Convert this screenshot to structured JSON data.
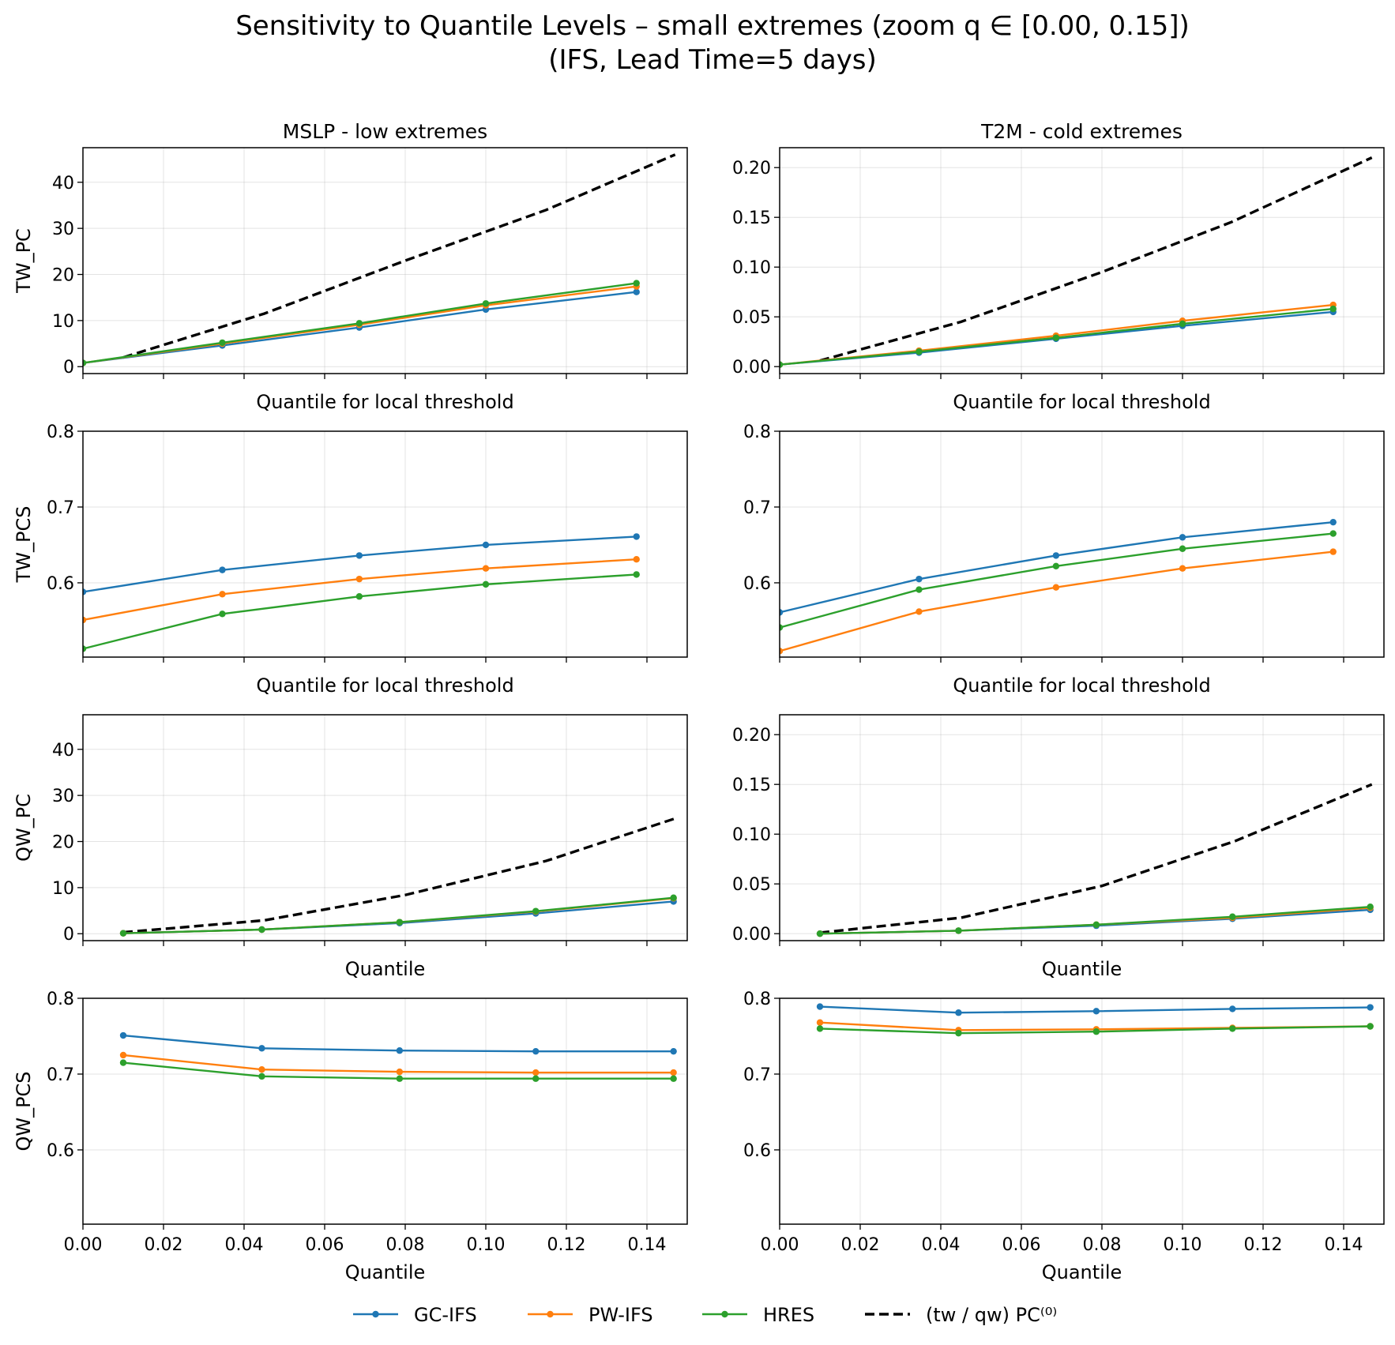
{
  "figure": {
    "title_line1": "Sensitivity to Quantile Levels – small extremes (zoom q ∈ [0.00, 0.15])",
    "title_line2": "(IFS, Lead Time=5 days)",
    "colors": {
      "GC-IFS": "#1f77b4",
      "PW-IFS": "#ff7f0e",
      "HRES": "#2ca02c",
      "reference": "#000000"
    },
    "legend": {
      "placement": "bottom-center",
      "entries": [
        "GC-IFS",
        "PW-IFS",
        "HRES",
        "(tw / qw) PC⁽⁰⁾"
      ]
    }
  },
  "chart_data": [
    {
      "type": "line",
      "row": 0,
      "col": 0,
      "title": "MSLP - low extremes",
      "xlabel": "Quantile for local threshold",
      "ylabel": "TW_PC",
      "xlim": [
        0.0,
        0.15
      ],
      "ylim": [
        -1.5,
        47.5
      ],
      "yticks": [
        0,
        10,
        20,
        30,
        40
      ],
      "ytick_labels": [
        "0",
        "10",
        "20",
        "30",
        "40"
      ],
      "show_xtick_labels": false,
      "grid": true,
      "x": [
        0.0,
        0.0346,
        0.0686,
        0.1,
        0.1374
      ],
      "series": [
        {
          "name": "GC-IFS",
          "values": [
            0.8,
            4.6,
            8.5,
            12.4,
            16.2
          ]
        },
        {
          "name": "PW-IFS",
          "values": [
            0.8,
            5.0,
            9.1,
            13.3,
            17.4
          ]
        },
        {
          "name": "HRES",
          "values": [
            0.8,
            5.2,
            9.4,
            13.7,
            18.1
          ]
        }
      ],
      "reference": {
        "name": "(tw / qw) PC⁽⁰⁾",
        "x": [
          0.01,
          0.045,
          0.08,
          0.115,
          0.147
        ],
        "values": [
          2.0,
          11.5,
          23.0,
          34.0,
          46.0
        ]
      }
    },
    {
      "type": "line",
      "row": 0,
      "col": 1,
      "title": "T2M - cold extremes",
      "xlabel": "Quantile for local threshold",
      "ylabel": "",
      "xlim": [
        0.0,
        0.15
      ],
      "ylim": [
        -0.007,
        0.22
      ],
      "yticks": [
        0.0,
        0.05,
        0.1,
        0.15,
        0.2
      ],
      "ytick_labels": [
        "0.00",
        "0.05",
        "0.10",
        "0.15",
        "0.20"
      ],
      "show_xtick_labels": false,
      "grid": true,
      "x": [
        0.0,
        0.0346,
        0.0686,
        0.1,
        0.1374
      ],
      "series": [
        {
          "name": "GC-IFS",
          "values": [
            0.002,
            0.014,
            0.028,
            0.041,
            0.055
          ]
        },
        {
          "name": "PW-IFS",
          "values": [
            0.002,
            0.016,
            0.031,
            0.046,
            0.062
          ]
        },
        {
          "name": "HRES",
          "values": [
            0.002,
            0.015,
            0.029,
            0.043,
            0.058
          ]
        }
      ],
      "reference": {
        "name": "(tw / qw) PC⁽⁰⁾",
        "x": [
          0.01,
          0.045,
          0.08,
          0.112,
          0.147
        ],
        "values": [
          0.006,
          0.045,
          0.095,
          0.145,
          0.21
        ]
      }
    },
    {
      "type": "line",
      "row": 1,
      "col": 0,
      "title": "",
      "xlabel": "Quantile for local threshold",
      "ylabel": "TW_PCS",
      "xlim": [
        0.0,
        0.15
      ],
      "ylim": [
        0.502,
        0.8
      ],
      "yticks": [
        0.6,
        0.7,
        0.8
      ],
      "ytick_labels": [
        "0.6",
        "0.7",
        "0.8"
      ],
      "show_xtick_labels": false,
      "grid": true,
      "x": [
        0.0,
        0.0346,
        0.0686,
        0.1,
        0.1374
      ],
      "series": [
        {
          "name": "GC-IFS",
          "values": [
            0.588,
            0.617,
            0.636,
            0.65,
            0.661
          ]
        },
        {
          "name": "PW-IFS",
          "values": [
            0.551,
            0.585,
            0.605,
            0.619,
            0.631
          ]
        },
        {
          "name": "HRES",
          "values": [
            0.513,
            0.559,
            0.582,
            0.598,
            0.611
          ]
        }
      ]
    },
    {
      "type": "line",
      "row": 1,
      "col": 1,
      "title": "",
      "xlabel": "Quantile for local threshold",
      "ylabel": "",
      "xlim": [
        0.0,
        0.15
      ],
      "ylim": [
        0.502,
        0.8
      ],
      "yticks": [
        0.6,
        0.7,
        0.8
      ],
      "ytick_labels": [
        "0.6",
        "0.7",
        "0.8"
      ],
      "show_xtick_labels": false,
      "grid": true,
      "x": [
        0.0,
        0.0346,
        0.0686,
        0.1,
        0.1374
      ],
      "series": [
        {
          "name": "GC-IFS",
          "values": [
            0.561,
            0.605,
            0.636,
            0.66,
            0.68
          ]
        },
        {
          "name": "PW-IFS",
          "values": [
            0.51,
            0.562,
            0.594,
            0.619,
            0.641
          ]
        },
        {
          "name": "HRES",
          "values": [
            0.541,
            0.591,
            0.622,
            0.645,
            0.665
          ]
        }
      ]
    },
    {
      "type": "line",
      "row": 2,
      "col": 0,
      "title": "",
      "xlabel": "Quantile",
      "ylabel": "QW_PC",
      "xlim": [
        0.0,
        0.15
      ],
      "ylim": [
        -1.5,
        47.5
      ],
      "yticks": [
        0,
        10,
        20,
        30,
        40
      ],
      "ytick_labels": [
        "0",
        "10",
        "20",
        "30",
        "40"
      ],
      "show_xtick_labels": false,
      "grid": true,
      "x": [
        0.01,
        0.0444,
        0.0786,
        0.1124,
        0.1466
      ],
      "series": [
        {
          "name": "GC-IFS",
          "values": [
            0.1,
            0.9,
            2.3,
            4.4,
            7.0
          ]
        },
        {
          "name": "PW-IFS",
          "values": [
            0.1,
            0.9,
            2.5,
            4.8,
            7.7
          ]
        },
        {
          "name": "HRES",
          "values": [
            0.1,
            0.9,
            2.5,
            4.9,
            7.8
          ]
        }
      ],
      "reference": {
        "name": "(tw / qw) PC⁽⁰⁾",
        "x": [
          0.01,
          0.045,
          0.08,
          0.115,
          0.147
        ],
        "values": [
          0.3,
          2.9,
          8.4,
          15.8,
          25.0
        ]
      }
    },
    {
      "type": "line",
      "row": 2,
      "col": 1,
      "title": "",
      "xlabel": "Quantile",
      "ylabel": "",
      "xlim": [
        0.0,
        0.15
      ],
      "ylim": [
        -0.007,
        0.22
      ],
      "yticks": [
        0.0,
        0.05,
        0.1,
        0.15,
        0.2
      ],
      "ytick_labels": [
        "0.00",
        "0.05",
        "0.10",
        "0.15",
        "0.20"
      ],
      "show_xtick_labels": false,
      "grid": true,
      "x": [
        0.01,
        0.0444,
        0.0786,
        0.1124,
        0.1466
      ],
      "series": [
        {
          "name": "GC-IFS",
          "values": [
            0.0,
            0.003,
            0.008,
            0.015,
            0.024
          ]
        },
        {
          "name": "PW-IFS",
          "values": [
            0.0,
            0.003,
            0.009,
            0.016,
            0.026
          ]
        },
        {
          "name": "HRES",
          "values": [
            0.0,
            0.003,
            0.009,
            0.017,
            0.027
          ]
        }
      ],
      "reference": {
        "name": "(tw / qw) PC⁽⁰⁾",
        "x": [
          0.01,
          0.045,
          0.08,
          0.113,
          0.147
        ],
        "values": [
          0.001,
          0.016,
          0.048,
          0.093,
          0.15
        ]
      }
    },
    {
      "type": "line",
      "row": 3,
      "col": 0,
      "title": "",
      "xlabel": "Quantile",
      "ylabel": "QW_PCS",
      "xlim": [
        0.0,
        0.15
      ],
      "ylim": [
        0.502,
        0.8
      ],
      "yticks": [
        0.6,
        0.7,
        0.8
      ],
      "ytick_labels": [
        "0.6",
        "0.7",
        "0.8"
      ],
      "xticks": [
        0.0,
        0.02,
        0.04,
        0.06,
        0.08,
        0.1,
        0.12,
        0.14
      ],
      "xtick_labels": [
        "0.00",
        "0.02",
        "0.04",
        "0.06",
        "0.08",
        "0.10",
        "0.12",
        "0.14"
      ],
      "show_xtick_labels": true,
      "grid": true,
      "x": [
        0.01,
        0.0444,
        0.0786,
        0.1124,
        0.1466
      ],
      "series": [
        {
          "name": "GC-IFS",
          "values": [
            0.751,
            0.734,
            0.731,
            0.73,
            0.73
          ]
        },
        {
          "name": "PW-IFS",
          "values": [
            0.725,
            0.706,
            0.703,
            0.702,
            0.702
          ]
        },
        {
          "name": "HRES",
          "values": [
            0.715,
            0.697,
            0.694,
            0.694,
            0.694
          ]
        }
      ]
    },
    {
      "type": "line",
      "row": 3,
      "col": 1,
      "title": "",
      "xlabel": "Quantile",
      "ylabel": "",
      "xlim": [
        0.0,
        0.15
      ],
      "ylim": [
        0.502,
        0.8
      ],
      "yticks": [
        0.6,
        0.7,
        0.8
      ],
      "ytick_labels": [
        "0.6",
        "0.7",
        "0.8"
      ],
      "xticks": [
        0.0,
        0.02,
        0.04,
        0.06,
        0.08,
        0.1,
        0.12,
        0.14
      ],
      "xtick_labels": [
        "0.00",
        "0.02",
        "0.04",
        "0.06",
        "0.08",
        "0.10",
        "0.12",
        "0.14"
      ],
      "show_xtick_labels": true,
      "grid": true,
      "x": [
        0.01,
        0.0444,
        0.0786,
        0.1124,
        0.1466
      ],
      "series": [
        {
          "name": "GC-IFS",
          "values": [
            0.789,
            0.781,
            0.783,
            0.786,
            0.788
          ]
        },
        {
          "name": "PW-IFS",
          "values": [
            0.768,
            0.758,
            0.759,
            0.761,
            0.763
          ]
        },
        {
          "name": "HRES",
          "values": [
            0.76,
            0.754,
            0.756,
            0.76,
            0.763
          ]
        }
      ]
    }
  ]
}
